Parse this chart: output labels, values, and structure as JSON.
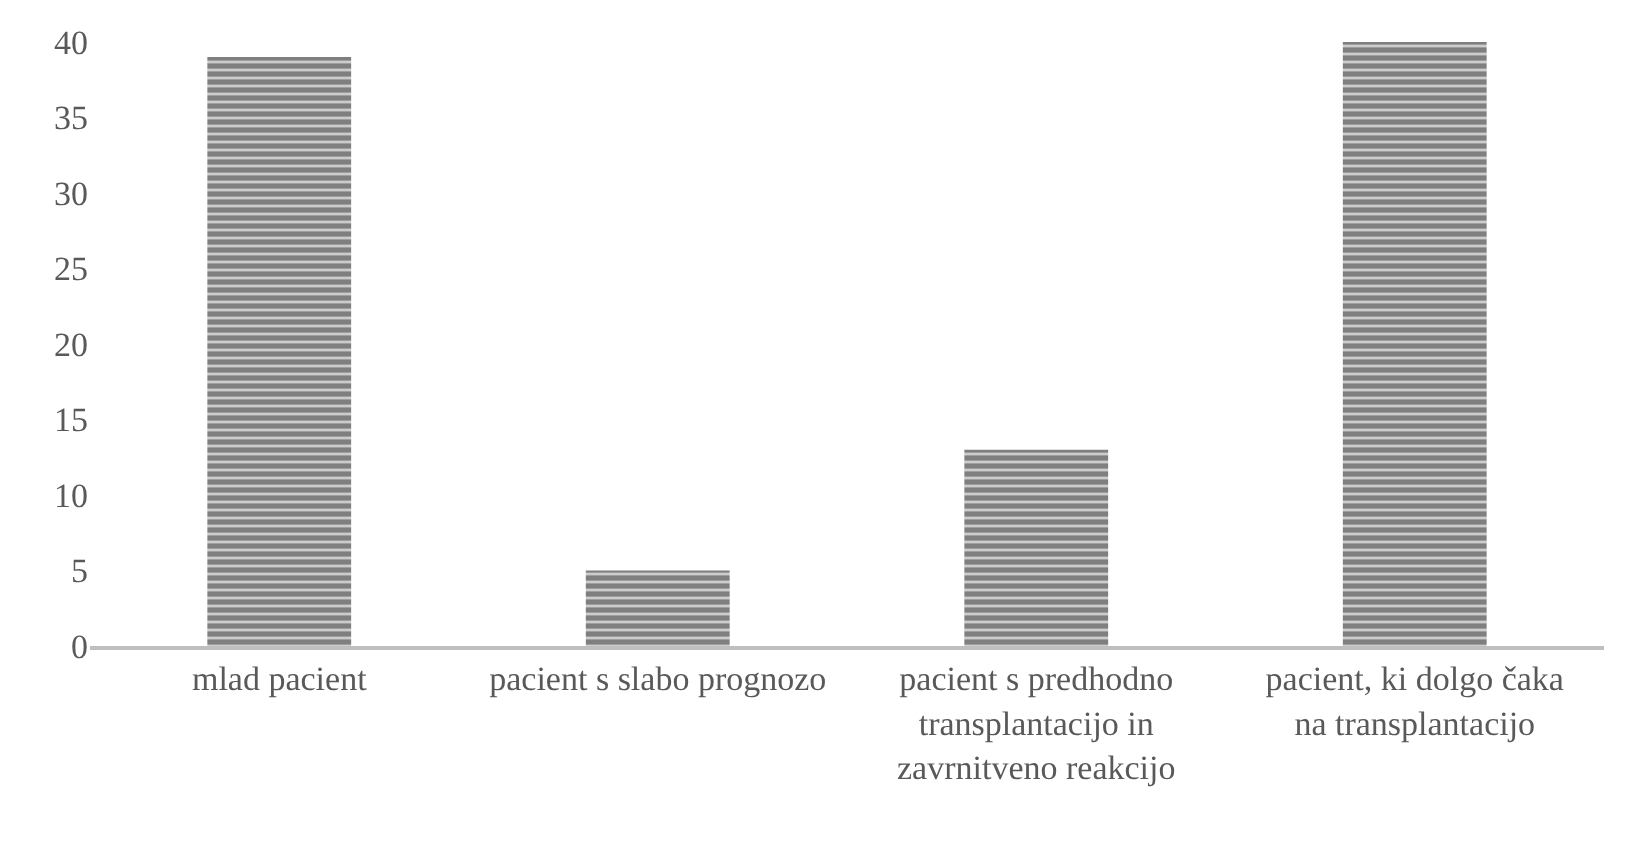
{
  "chart_data": {
    "type": "bar",
    "categories": [
      "mlad pacient",
      "pacient s slabo prognozo",
      "pacient s predhodno transplantacijo in zavrnitveno reakcijo",
      "pacient, ki dolgo čaka na transplantacijo"
    ],
    "values": [
      39,
      5,
      13,
      40
    ],
    "color": "#7f7f7f",
    "ylim": [
      0,
      40
    ],
    "yticks": [
      0,
      5,
      10,
      15,
      20,
      25,
      30,
      35,
      40
    ]
  }
}
